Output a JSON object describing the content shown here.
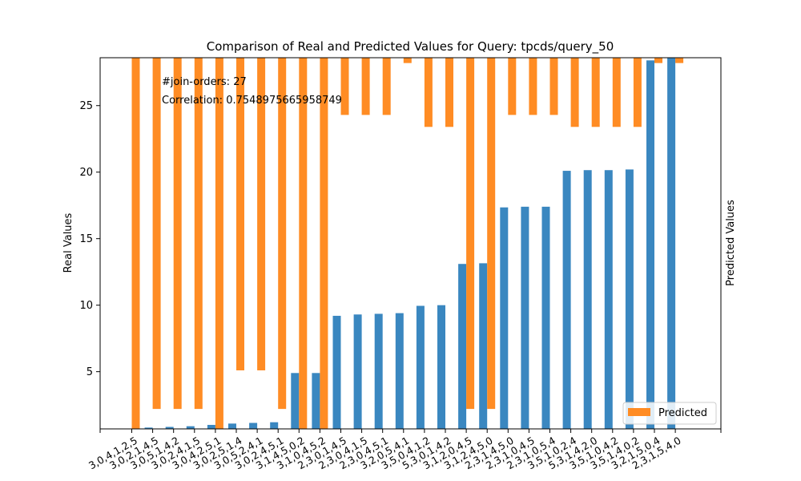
{
  "chart_data": {
    "type": "bar",
    "title": "Comparison of Real and Predicted Values for Query: tpcds/query_50",
    "ylabel": "Real Values",
    "ylabel_right": "Predicted Values",
    "xlabel": "",
    "ylim": [
      0.7,
      28.6
    ],
    "yticks": [
      5,
      10,
      15,
      20,
      25
    ],
    "annotations": [
      "#join-orders: 27",
      "Correlation: 0.7548975665958749"
    ],
    "legend": {
      "position": "bottom-right",
      "entries": [
        "Predicted"
      ]
    },
    "colors": {
      "real": "#3a87c0",
      "predicted": "#ff8c24"
    },
    "categories": [
      "3,0,4,1,2,5",
      "3,0,2,1,4,5",
      "3,0,5,1,4,2",
      "3,0,2,4,1,5",
      "3,0,4,2,5,1",
      "3,0,2,5,1,4",
      "3,0,5,2,4,1",
      "3,0,2,4,5,1",
      "3,1,4,5,0,2",
      "3,1,0,4,5,2",
      "2,3,0,1,4,5",
      "2,3,0,4,1,5",
      "2,3,0,4,5,1",
      "3,2,0,5,4,1",
      "3,5,0,4,1,2",
      "5,3,0,1,4,2",
      "3,1,2,0,4,5",
      "3,1,2,4,5,0",
      "2,3,1,4,5,0",
      "2,3,1,0,4,5",
      "2,3,1,0,5,4",
      "3,5,1,0,2,4",
      "5,3,1,4,2,0",
      "3,5,1,0,4,2",
      "3,5,1,4,0,2",
      "3,2,1,5,0,4",
      "2,3,1,5,4,0"
    ],
    "series": [
      {
        "name": "Real",
        "values": [
          0.7,
          0.8,
          0.85,
          0.9,
          1.0,
          1.1,
          1.15,
          1.2,
          4.9,
          4.9,
          9.2,
          9.3,
          9.35,
          9.4,
          9.95,
          10.0,
          13.1,
          13.15,
          17.35,
          17.4,
          17.4,
          20.1,
          20.15,
          20.15,
          20.2,
          28.4,
          28.6
        ]
      },
      {
        "name": "Predicted",
        "values": [
          0.7,
          2.2,
          2.2,
          2.2,
          0.7,
          5.1,
          5.1,
          2.2,
          0.7,
          0.7,
          24.3,
          24.3,
          24.3,
          28.2,
          23.4,
          23.4,
          2.2,
          2.2,
          24.3,
          24.3,
          24.3,
          23.4,
          23.4,
          23.4,
          23.4,
          28.2,
          28.2
        ]
      }
    ]
  }
}
